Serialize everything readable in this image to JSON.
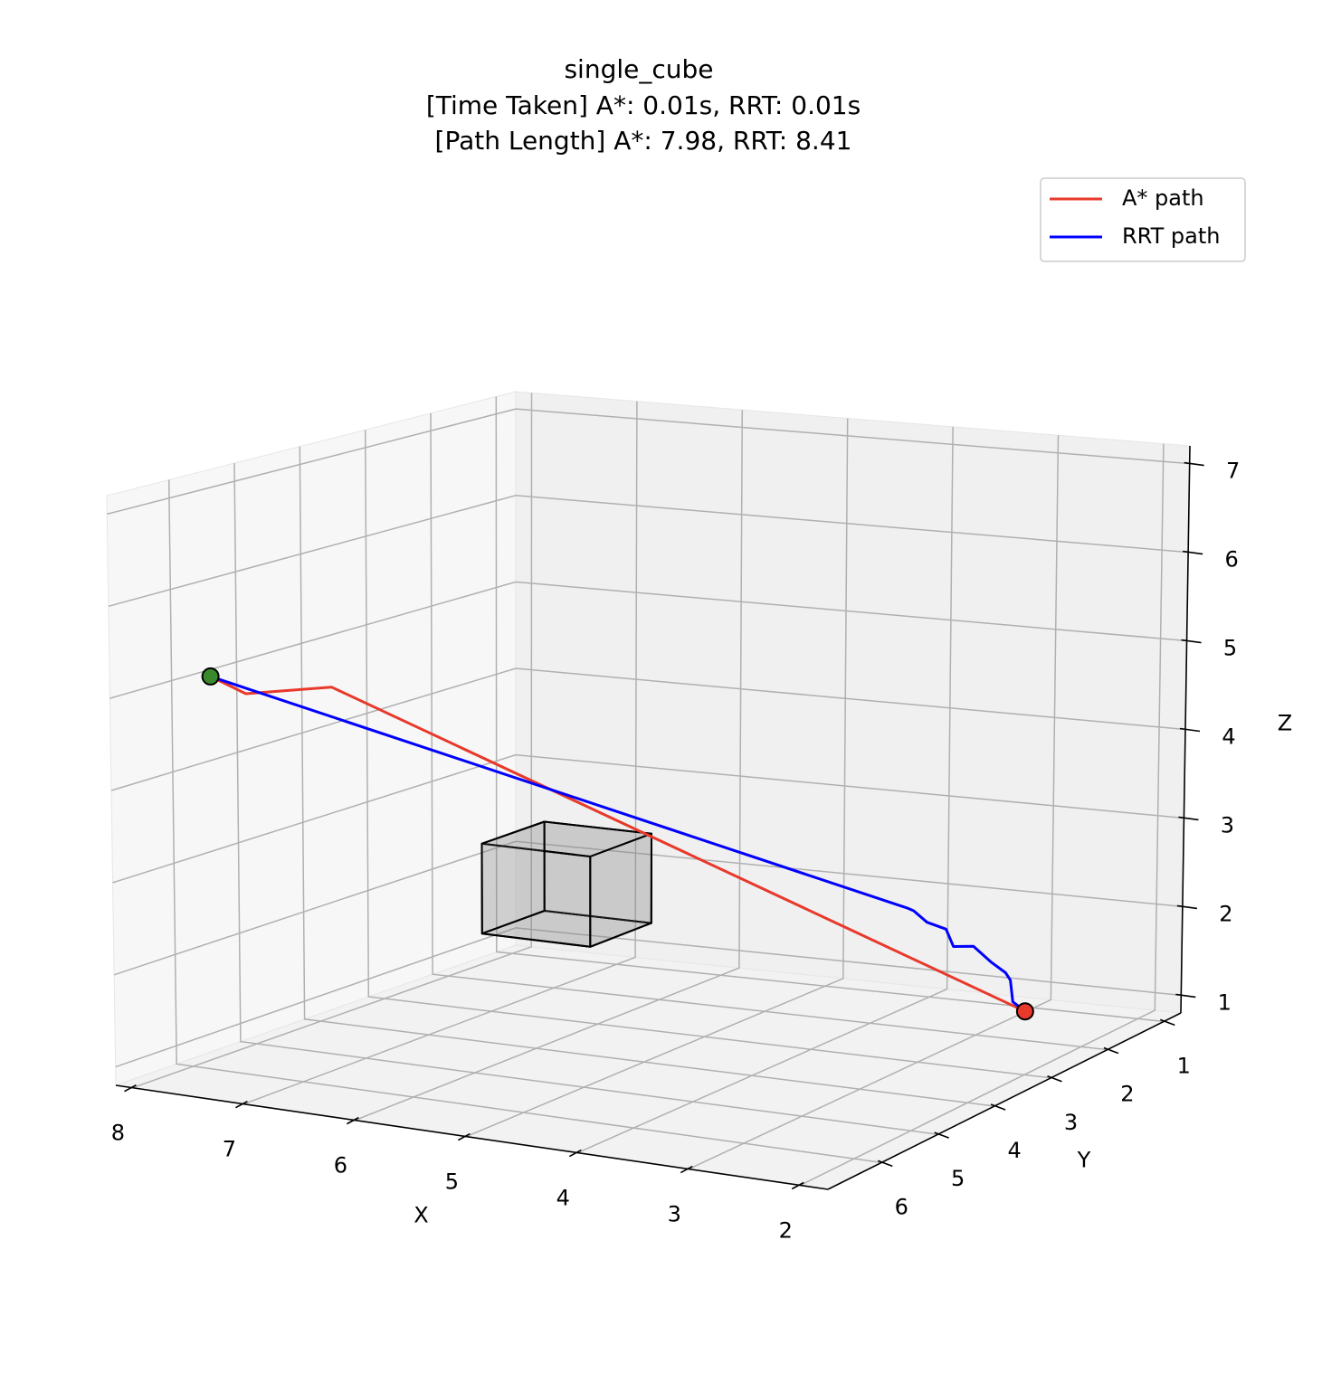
{
  "chart_data": {
    "type": "line3d",
    "title": [
      "single_cube",
      "[Time Taken] A*: 0.01s, RRT: 0.01s",
      "[Path Length] A*: 7.98, RRT: 8.41"
    ],
    "xlabel": "X",
    "ylabel": "Y",
    "zlabel": "Z",
    "xlim": [
      1.75,
      8.15
    ],
    "ylim": [
      0.7,
      6.95
    ],
    "zlim": [
      0.8,
      7.2
    ],
    "xticks": [
      2,
      3,
      4,
      5,
      6,
      7,
      8
    ],
    "yticks": [
      1,
      2,
      3,
      4,
      5,
      6
    ],
    "zticks": [
      1,
      2,
      3,
      4,
      5,
      6,
      7
    ],
    "grid": true,
    "legend": "upper right",
    "series": [
      {
        "name": "A* path",
        "color": "#e8392b",
        "x": [
          7.8,
          7.6,
          7.0,
          2.0
        ],
        "y": [
          6.0,
          5.8,
          5.5,
          3.0
        ],
        "z": [
          5.1,
          4.9,
          5.0,
          1.5
        ]
      },
      {
        "name": "RRT path",
        "color": "#0000ff",
        "x": [
          7.8,
          2.95,
          2.9,
          2.79,
          2.64,
          2.58,
          2.42,
          2.27,
          2.16,
          2.12,
          2.1,
          2.07,
          2.0
        ],
        "y": [
          6.0,
          3.3,
          3.28,
          3.25,
          3.2,
          3.18,
          3.13,
          3.09,
          3.05,
          3.04,
          3.03,
          3.02,
          3.0
        ],
        "z": [
          5.1,
          2.6,
          2.57,
          2.45,
          2.38,
          2.19,
          2.2,
          2.03,
          1.92,
          1.84,
          1.6,
          1.57,
          1.5
        ]
      }
    ],
    "markers": [
      {
        "x": 7.8,
        "y": 6.0,
        "z": 5.1,
        "color": "#3a8a2c"
      },
      {
        "x": 2.0,
        "y": 3.0,
        "z": 1.5,
        "color": "#e8392b"
      }
    ],
    "boxes": [
      {
        "x": [
          5.5,
          6.5
        ],
        "y": [
          3,
          4
        ],
        "z": [
          2,
          3
        ],
        "color": "#808080"
      }
    ]
  }
}
